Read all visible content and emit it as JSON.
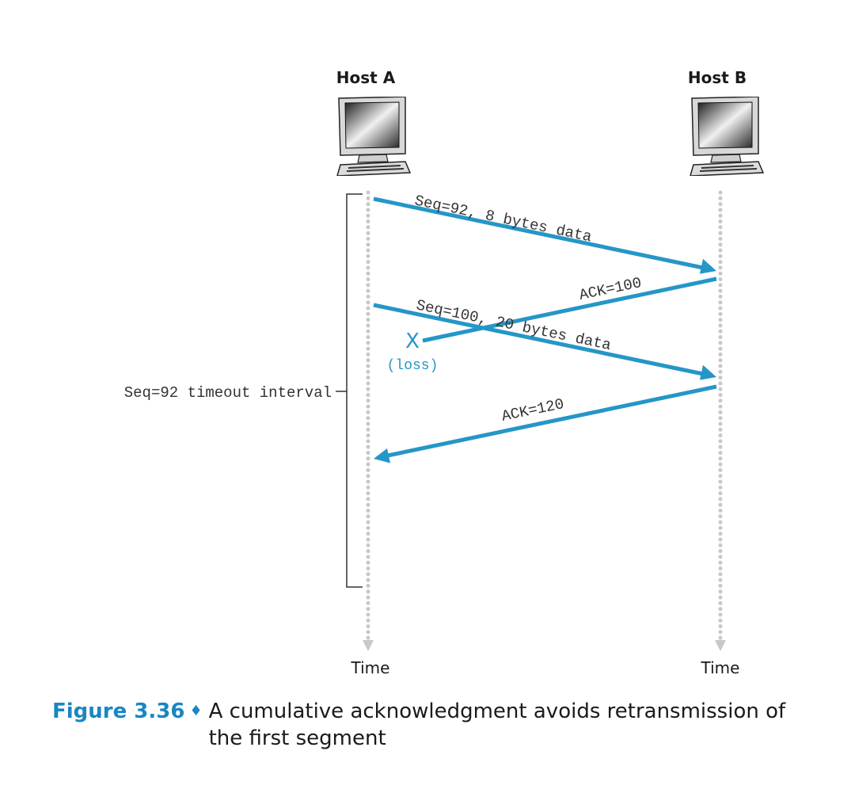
{
  "colors": {
    "arrow": "#2596c8",
    "timeline": "#c8c8c8",
    "bracket": "#333333",
    "caption_accent": "#1a86c2"
  },
  "hosts": {
    "a": {
      "label": "Host A",
      "icon": "desktop-computer-icon",
      "time_label": "Time"
    },
    "b": {
      "label": "Host B",
      "icon": "desktop-computer-icon",
      "time_label": "Time"
    }
  },
  "messages": {
    "seq92": {
      "label": "Seq=92, 8 bytes data",
      "from": "Host A",
      "to": "Host B"
    },
    "ack100": {
      "label": "ACK=100",
      "from": "Host B",
      "to": "Host A",
      "lost": true
    },
    "seq100": {
      "label": "Seq=100, 20 bytes data",
      "from": "Host A",
      "to": "Host B"
    },
    "ack120": {
      "label": "ACK=120",
      "from": "Host B",
      "to": "Host A"
    }
  },
  "loss": {
    "mark": "X",
    "label": "(loss)"
  },
  "timeout": {
    "label": "Seq=92 timeout interval"
  },
  "caption": {
    "figure_number": "Figure 3.36",
    "separator": "♦",
    "text": "A cumulative acknowledgment avoids retransmission of the first segment"
  }
}
